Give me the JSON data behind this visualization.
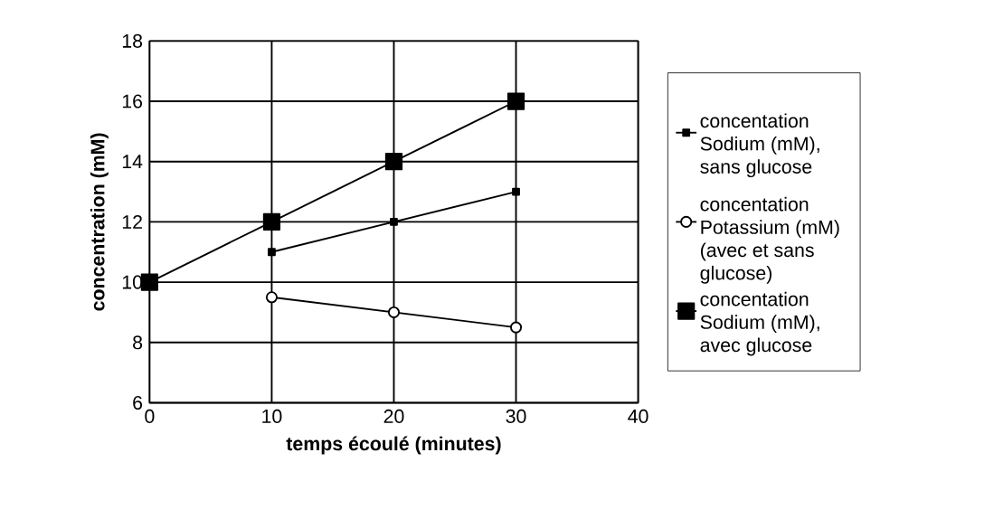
{
  "chart_data": {
    "type": "line",
    "xlabel": "temps écoulé (minutes)",
    "ylabel": "concentration (mM)",
    "x": [
      0,
      10,
      20,
      30
    ],
    "series": [
      {
        "name": "concentation Sodium (mM), sans glucose",
        "color": "#000000",
        "marker": "square",
        "values": [
          null,
          11,
          12,
          13
        ]
      },
      {
        "name": "concentation Potassium (mM) (avec et sans glucose)",
        "color": "#000000",
        "marker": "circle",
        "values": [
          null,
          9.5,
          9,
          8.5
        ]
      },
      {
        "name": "concentation Sodium (mM), avec glucose",
        "color": "#000000",
        "marker": "square",
        "values": [
          10,
          12,
          14,
          16
        ]
      }
    ],
    "xlim": [
      0,
      40
    ],
    "xticks": [
      0,
      10,
      20,
      30,
      40
    ],
    "ylim": [
      6,
      18
    ],
    "yticks": [
      6,
      8,
      10,
      12,
      14,
      16,
      18
    ],
    "grid": true,
    "legend": "right",
    "line_style": "solid"
  }
}
